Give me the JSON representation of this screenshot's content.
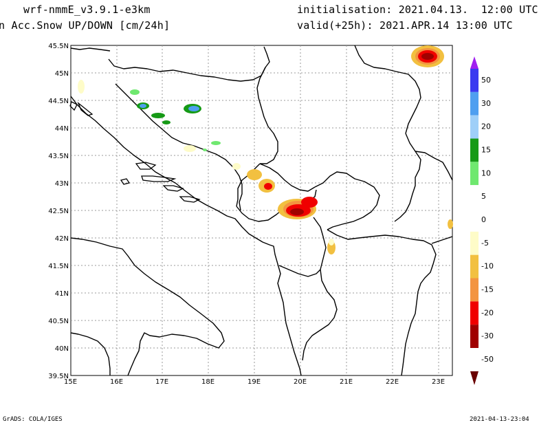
{
  "header": {
    "model": "wrf-nmmE_v3.9.1-e3km",
    "field": "n Acc.Snow UP/DOWN [cm/24h]",
    "initialisation": "initialisation: 2021.04.13.  12:00 UTC",
    "valid": "valid(+25h): 2021.APR.14 13:00 UTC"
  },
  "footer": {
    "credit": "GrADS: COLA/IGES",
    "timestamp": "2021-04-13-23:04"
  },
  "map": {
    "lon_labels": [
      "15E",
      "16E",
      "17E",
      "18E",
      "19E",
      "20E",
      "21E",
      "22E",
      "23E"
    ],
    "lat_labels": [
      "45.5N",
      "45N",
      "44.5N",
      "44N",
      "43.5N",
      "43N",
      "42.5N",
      "42N",
      "41.5N",
      "41N",
      "40.5N",
      "40N",
      "39.5N"
    ],
    "lon_range": [
      15,
      23.3
    ],
    "lat_range": [
      39.5,
      45.5
    ]
  },
  "colorbar": {
    "labels": [
      "50",
      "30",
      "20",
      "15",
      "10",
      "5",
      "0",
      "-5",
      "-10",
      "-15",
      "-20",
      "-30",
      "-50"
    ],
    "colors": [
      "#a020f0",
      "#3a3af0",
      "#4f9ff0",
      "#9fcff8",
      "#169a16",
      "#6fe86f",
      "#ffffff",
      "#ffffff",
      "#fefcc8",
      "#f2c040",
      "#f39440",
      "#f00000",
      "#a00000"
    ]
  }
}
